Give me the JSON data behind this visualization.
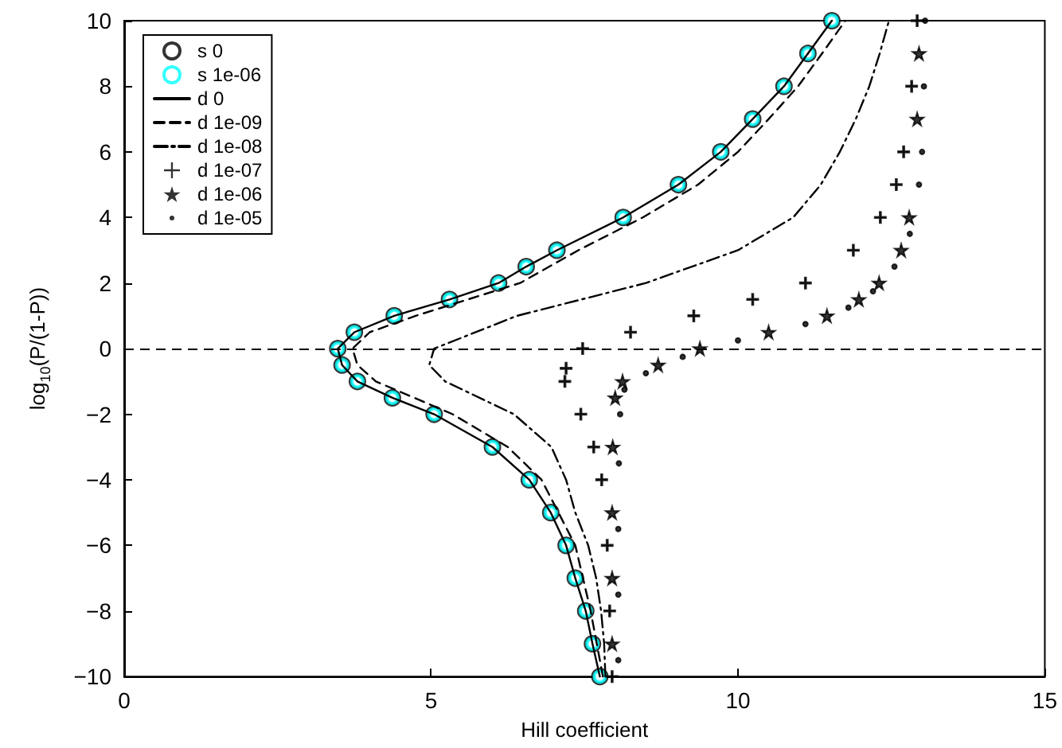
{
  "chart_data": {
    "type": "line",
    "xlabel": "Hill coefficient",
    "ylabel": "log$_{10}$(P/(1-P))",
    "xlim": [
      0,
      15
    ],
    "xticks": [
      0,
      5,
      10,
      15
    ],
    "ylim": [
      -10,
      10
    ],
    "yticks": [
      -10,
      -8,
      -6,
      -4,
      -2,
      0,
      2,
      4,
      6,
      8,
      10
    ],
    "grid": false,
    "legend": "top left",
    "ref_lines": [
      {
        "axis": "y",
        "value": 0,
        "color": "#000000",
        "line_style": "dashed"
      }
    ],
    "series": [
      {
        "name": "s 0",
        "type": "scatter",
        "color": "#000000",
        "marker": "circle",
        "x": [
          7.75,
          7.63,
          7.52,
          7.35,
          7.2,
          6.95,
          6.6,
          6.0,
          5.05,
          4.37,
          3.8,
          3.55,
          3.48,
          3.75,
          4.4,
          5.3,
          6.1,
          6.55,
          7.05,
          8.13,
          9.03,
          9.72,
          10.24,
          10.75,
          11.14,
          11.53
        ],
        "values": [
          -10,
          -9,
          -8,
          -7,
          -6,
          -5,
          -4,
          -3,
          -2,
          -1.5,
          -1,
          -0.5,
          0,
          0.5,
          1,
          1.5,
          2,
          2.5,
          3,
          4,
          5,
          6,
          7,
          8,
          9,
          10
        ]
      },
      {
        "name": "s 1e-06",
        "type": "scatter",
        "color": "#00ffff",
        "marker": "circle",
        "x": [
          7.75,
          7.63,
          7.52,
          7.35,
          7.2,
          6.95,
          6.6,
          6.0,
          5.05,
          4.37,
          3.8,
          3.55,
          3.48,
          3.75,
          4.4,
          5.3,
          6.1,
          6.55,
          7.05,
          8.13,
          9.03,
          9.72,
          10.24,
          10.75,
          11.14,
          11.53
        ],
        "values": [
          -10,
          -9,
          -8,
          -7,
          -6,
          -5,
          -4,
          -3,
          -2,
          -1.5,
          -1,
          -0.5,
          0,
          0.5,
          1,
          1.5,
          2,
          2.5,
          3,
          4,
          5,
          6,
          7,
          8,
          9,
          10
        ]
      },
      {
        "name": "d 0",
        "color": "#000000",
        "line_style": "solid",
        "x": [
          7.75,
          7.63,
          7.52,
          7.35,
          7.2,
          6.95,
          6.6,
          6.0,
          5.05,
          4.37,
          3.8,
          3.55,
          3.48,
          3.75,
          4.4,
          5.3,
          6.1,
          6.55,
          7.05,
          8.13,
          9.03,
          9.72,
          10.24,
          10.75,
          11.14,
          11.53
        ],
        "values": [
          -10,
          -9,
          -8,
          -7,
          -6,
          -5,
          -4,
          -3,
          -2,
          -1.5,
          -1,
          -0.5,
          0,
          0.5,
          1,
          1.5,
          2,
          2.5,
          3,
          4,
          5,
          6,
          7,
          8,
          9,
          10
        ]
      },
      {
        "name": "d 1e-09",
        "color": "#000000",
        "line_style": "dashed",
        "x": [
          7.8,
          7.6,
          7.35,
          6.8,
          6.25,
          5.35,
          4.1,
          3.8,
          3.72,
          4.0,
          4.75,
          6.45,
          7.4,
          8.45,
          9.35,
          10.0,
          10.5,
          10.98,
          11.37,
          11.75
        ],
        "values": [
          -10,
          -8,
          -6,
          -4,
          -3,
          -2,
          -1,
          -0.5,
          0,
          0.5,
          1,
          2,
          3,
          4,
          5,
          6,
          7,
          8,
          9,
          10
        ]
      },
      {
        "name": "d 1e-08",
        "color": "#000000",
        "line_style": "dashed",
        "x": [
          7.84,
          7.82,
          7.77,
          7.69,
          7.56,
          7.35,
          7.2,
          6.96,
          6.35,
          5.23,
          4.97,
          5.05,
          6.4,
          8.5,
          10.0,
          10.9,
          11.35,
          11.66,
          11.92,
          12.14,
          12.31,
          12.46
        ],
        "values": [
          -10,
          -9,
          -8,
          -7,
          -6,
          -5,
          -4,
          -3,
          -2,
          -1,
          -0.5,
          0,
          1,
          2,
          3,
          4,
          5,
          6,
          7,
          8,
          9,
          10
        ]
      },
      {
        "name": "d 1e-07",
        "type": "scatter",
        "color": "#000000",
        "marker": "cross",
        "x": [
          7.95,
          7.91,
          7.87,
          7.78,
          7.65,
          7.44,
          7.18,
          7.2,
          7.47,
          8.25,
          9.28,
          10.24,
          11.1,
          11.88,
          12.32,
          12.58,
          12.7,
          12.83,
          12.92
        ],
        "values": [
          -10,
          -8,
          -6,
          -4,
          -3,
          -2,
          -1,
          -0.6,
          0,
          0.5,
          1,
          1.5,
          2,
          3,
          4,
          5,
          6,
          8,
          10
        ]
      },
      {
        "name": "d 1e-06",
        "type": "scatter",
        "color": "#000000",
        "marker": "star",
        "x": [
          7.95,
          7.95,
          7.95,
          7.96,
          8.0,
          8.12,
          8.7,
          9.38,
          10.5,
          11.45,
          11.97,
          12.3,
          12.66,
          12.79,
          12.92,
          12.95
        ],
        "values": [
          -9,
          -7,
          -5,
          -3,
          -1.5,
          -1,
          -0.5,
          0,
          0.5,
          1,
          1.5,
          2,
          3,
          4,
          7,
          9
        ]
      },
      {
        "name": "d 1e-05",
        "type": "scatter",
        "color": "#000000",
        "marker": "circle",
        "x": [
          8.05,
          8.05,
          8.05,
          8.06,
          8.08,
          8.15,
          8.5,
          9.1,
          10.0,
          11.1,
          11.8,
          12.2,
          12.55,
          12.8,
          12.95,
          13.0,
          13.03,
          13.05
        ],
        "values": [
          -9.5,
          -7.5,
          -5.5,
          -3.5,
          -2,
          -1.25,
          -0.75,
          -0.25,
          0.25,
          0.75,
          1.25,
          1.75,
          2.5,
          3.5,
          5,
          6,
          8,
          10
        ]
      }
    ]
  }
}
